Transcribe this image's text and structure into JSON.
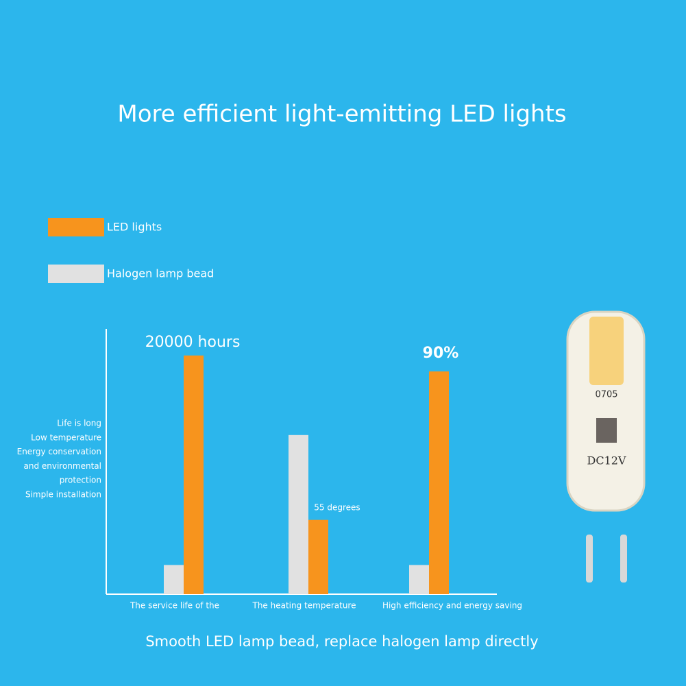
{
  "chart_data": {
    "type": "bar",
    "title": "More efficient light-emitting LED lights",
    "caption": "Smooth LED lamp bead, replace halogen lamp directly",
    "categories": [
      "The service life of the",
      "The heating temperature",
      "High efficiency and energy saving"
    ],
    "series": [
      {
        "name": "Halogen lamp bead",
        "color": "#e1e1e1",
        "values": [
          11,
          60,
          11
        ]
      },
      {
        "name": "LED lights",
        "color": "#f7941d",
        "values": [
          90,
          28,
          84
        ]
      }
    ],
    "annotations": [
      "20000 hours",
      "55 degrees",
      "90%"
    ],
    "side_notes": [
      "Life is long",
      "Low temperature",
      "Energy conservation",
      "and environmental",
      "protection",
      "Simple installation"
    ],
    "ylim": [
      0,
      100
    ]
  }
}
